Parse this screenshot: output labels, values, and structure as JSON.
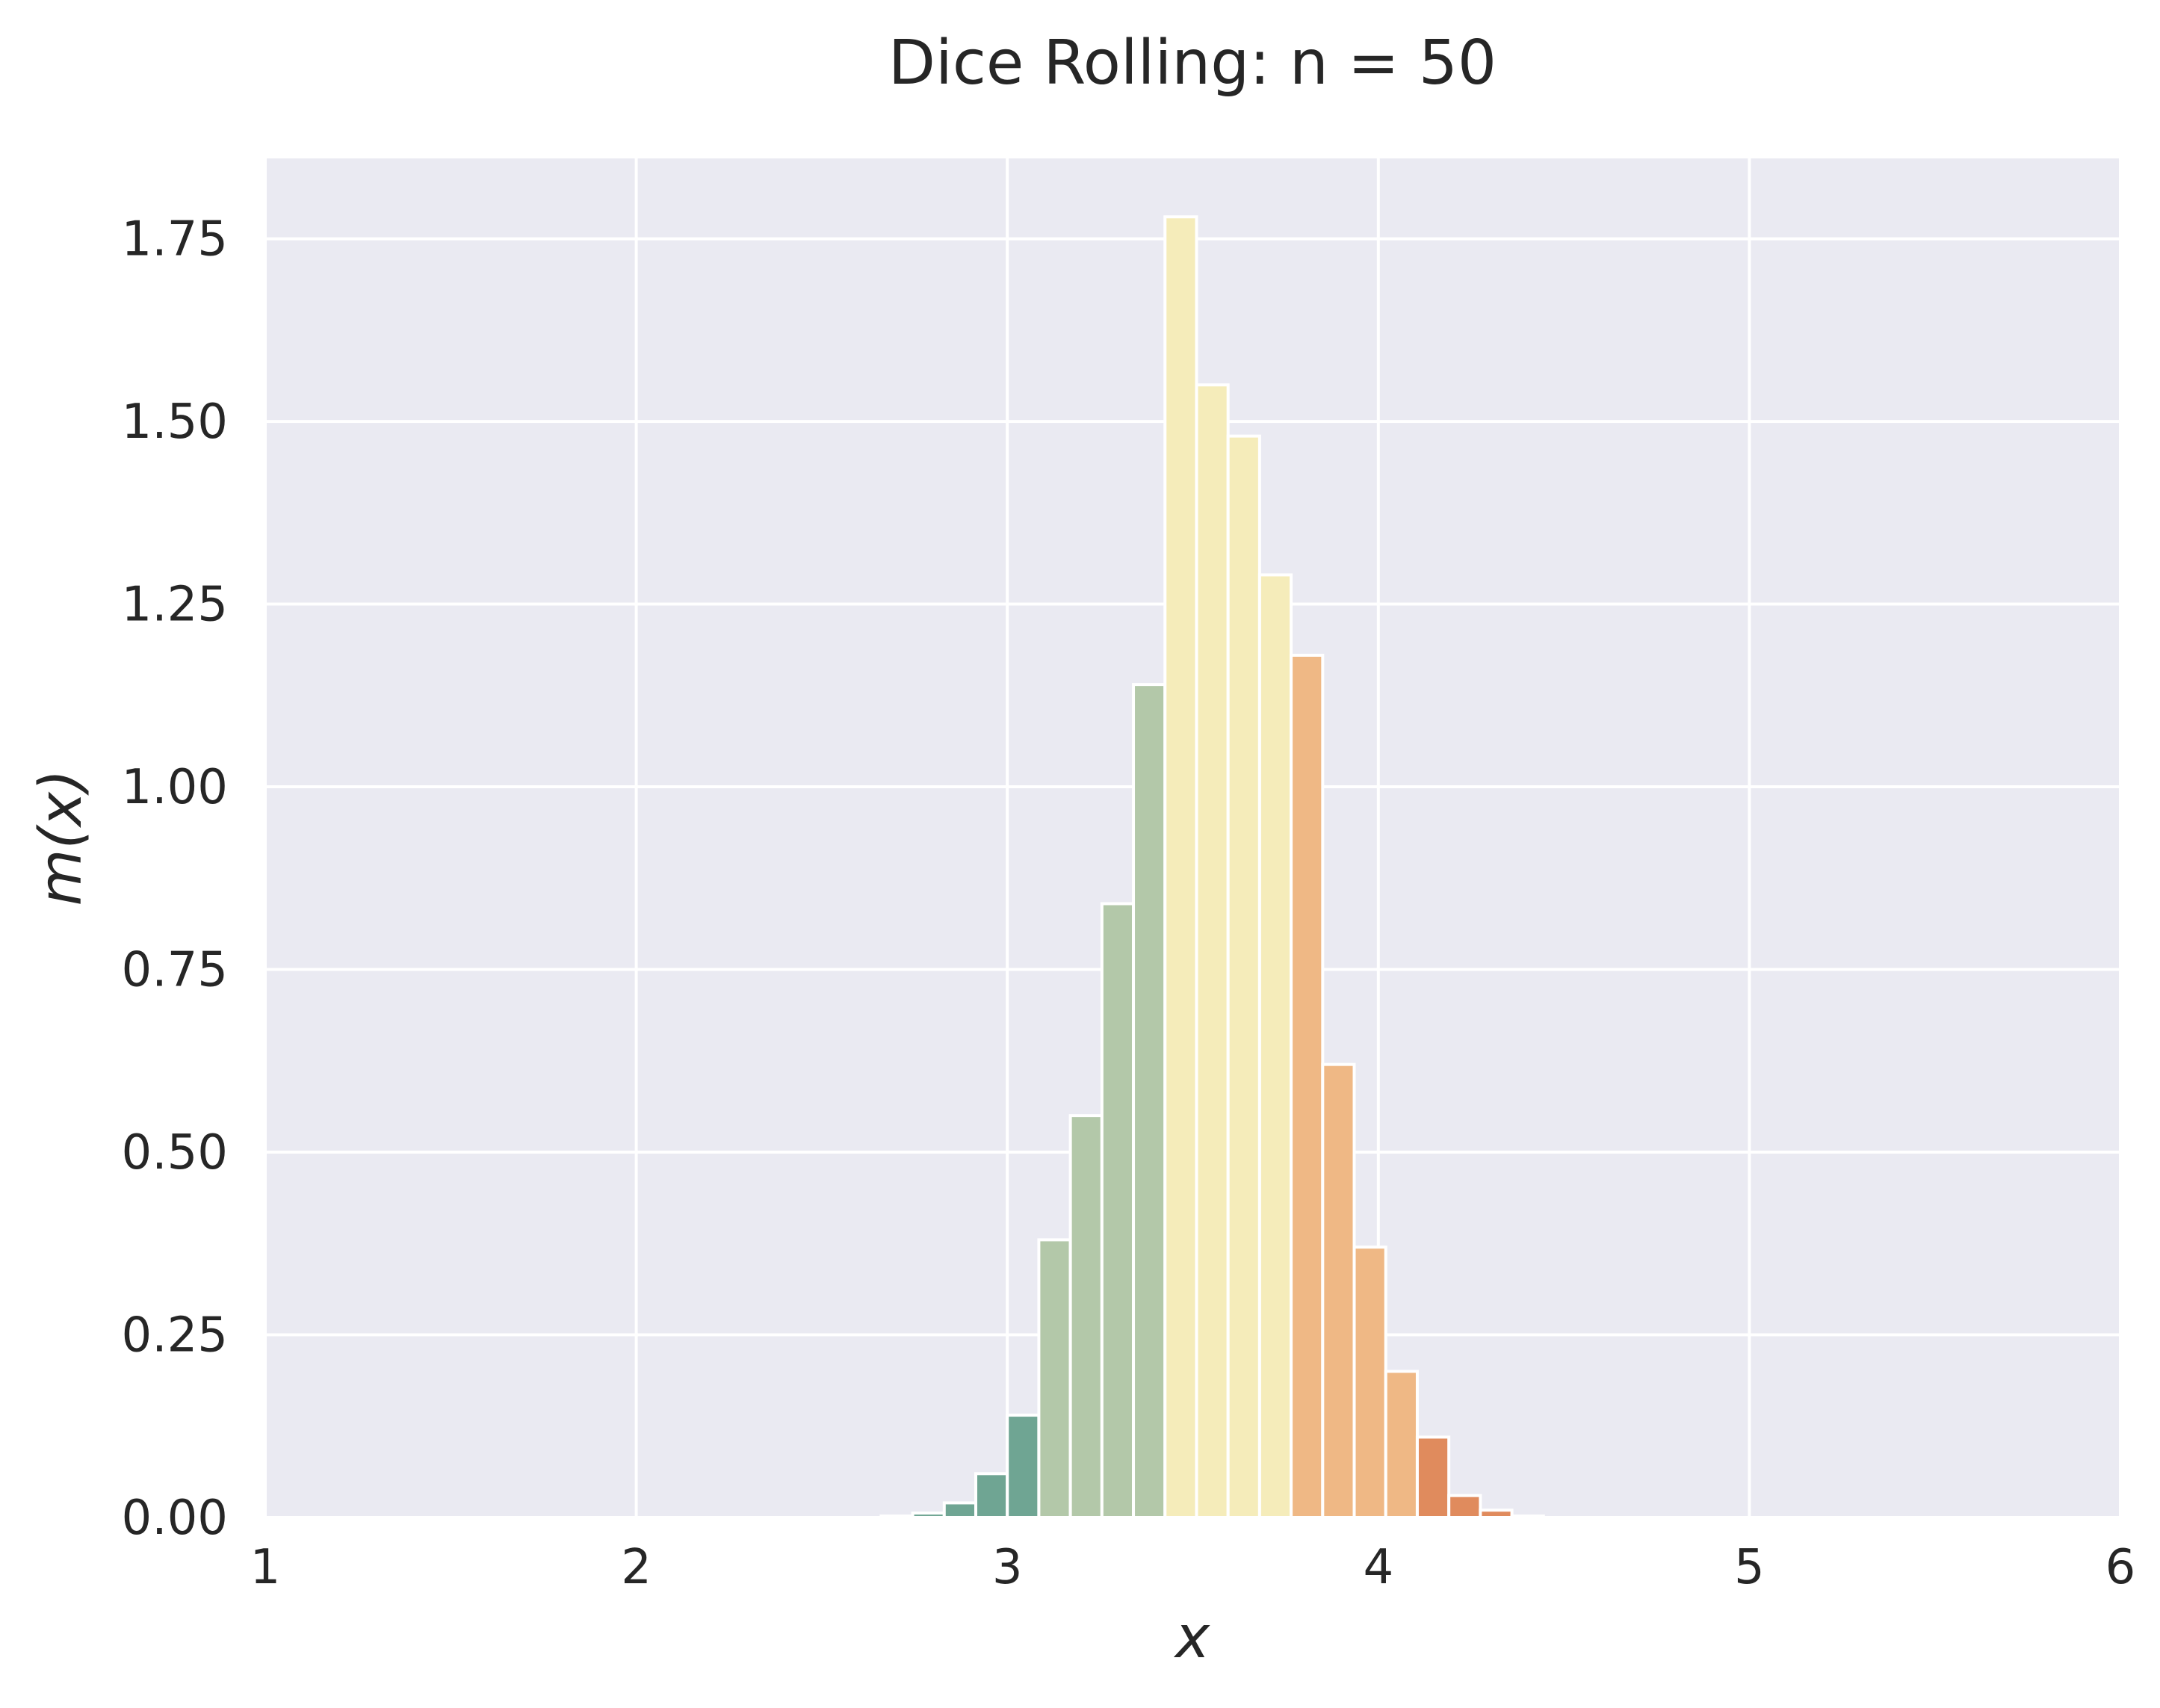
{
  "chart_data": {
    "type": "bar",
    "title": "Dice Rolling: n = 50",
    "xlabel": "x",
    "ylabel": "m(x)",
    "xlim": [
      1,
      6
    ],
    "ylim": [
      0,
      1.86
    ],
    "grid": true,
    "legend": "none",
    "x_ticks": [
      "1",
      "2",
      "3",
      "4",
      "5",
      "6"
    ],
    "y_ticks": [
      "0.00",
      "0.25",
      "0.50",
      "0.75",
      "1.00",
      "1.25",
      "1.50",
      "1.75"
    ],
    "bin_width": 0.085,
    "bins": [
      {
        "x": 2.66,
        "value": 0.002,
        "color": "#6fa593"
      },
      {
        "x": 2.745,
        "value": 0.006,
        "color": "#6fa593"
      },
      {
        "x": 2.83,
        "value": 0.02,
        "color": "#6fa593"
      },
      {
        "x": 2.915,
        "value": 0.06,
        "color": "#6fa593"
      },
      {
        "x": 3.0,
        "value": 0.14,
        "color": "#6fa593"
      },
      {
        "x": 3.085,
        "value": 0.38,
        "color": "#b3c8a9"
      },
      {
        "x": 3.17,
        "value": 0.55,
        "color": "#b3c8a9"
      },
      {
        "x": 3.255,
        "value": 0.84,
        "color": "#b3c8a9"
      },
      {
        "x": 3.34,
        "value": 1.14,
        "color": "#b3c8a9"
      },
      {
        "x": 3.425,
        "value": 1.78,
        "color": "#f5ecba"
      },
      {
        "x": 3.51,
        "value": 1.55,
        "color": "#f5ecba"
      },
      {
        "x": 3.595,
        "value": 1.48,
        "color": "#f5ecba"
      },
      {
        "x": 3.68,
        "value": 1.29,
        "color": "#f5ecba"
      },
      {
        "x": 3.765,
        "value": 1.18,
        "color": "#efb885"
      },
      {
        "x": 3.85,
        "value": 0.62,
        "color": "#efb885"
      },
      {
        "x": 3.935,
        "value": 0.37,
        "color": "#efb885"
      },
      {
        "x": 4.02,
        "value": 0.2,
        "color": "#efb885"
      },
      {
        "x": 4.105,
        "value": 0.11,
        "color": "#e08b5d"
      },
      {
        "x": 4.19,
        "value": 0.03,
        "color": "#e08b5d"
      },
      {
        "x": 4.275,
        "value": 0.01,
        "color": "#e08b5d"
      },
      {
        "x": 4.36,
        "value": 0.002,
        "color": "#e08b5d"
      }
    ],
    "colors": {
      "plot_bg": "#eaeaf2",
      "grid": "#ffffff",
      "bar_edge": "#ffffff",
      "text": "#262626"
    }
  }
}
